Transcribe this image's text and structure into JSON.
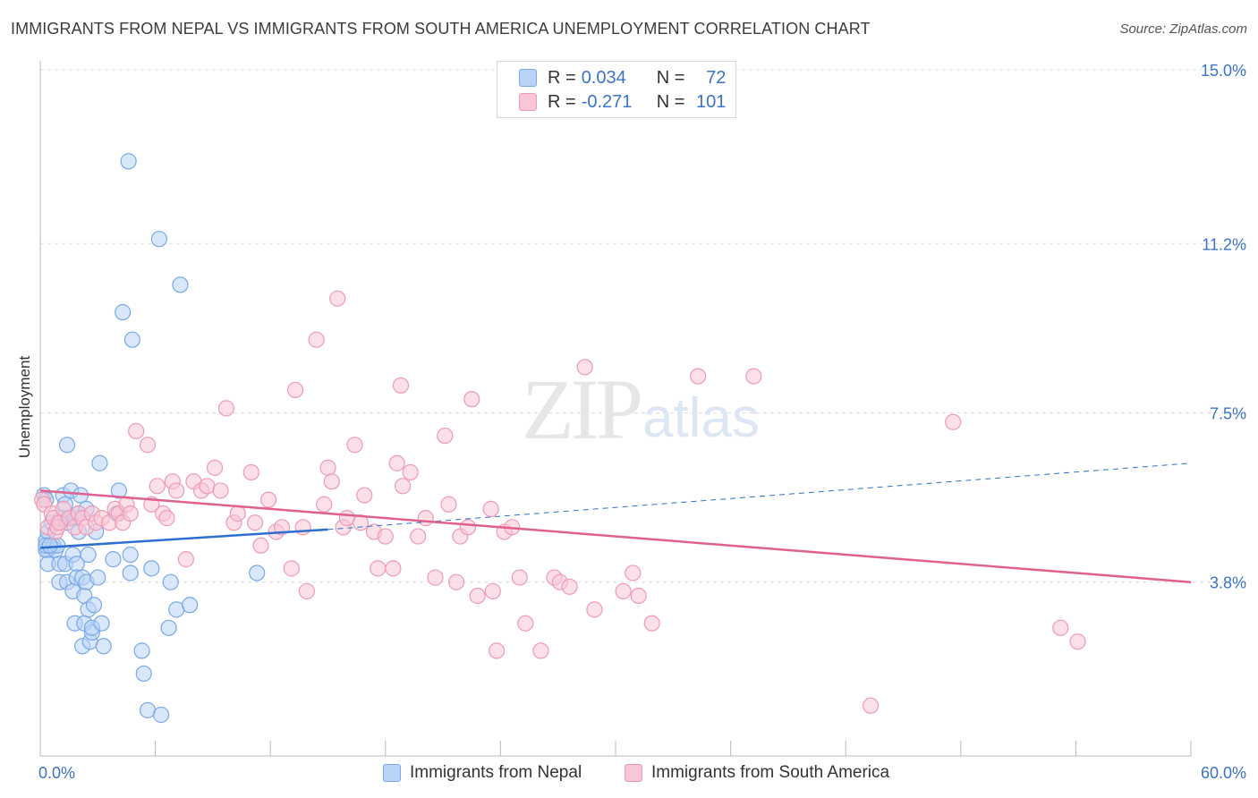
{
  "header": {
    "title": "IMMIGRANTS FROM NEPAL VS IMMIGRANTS FROM SOUTH AMERICA UNEMPLOYMENT CORRELATION CHART",
    "source": "Source: ZipAtlas.com"
  },
  "watermark": {
    "zip": "ZIP",
    "atlas": "atlas"
  },
  "legend": {
    "r_label": "R =",
    "n_label": "N =",
    "items": [
      {
        "name": "Immigrants from Nepal",
        "r": "0.034",
        "n": "72",
        "fill": "#b8d3f5",
        "stroke": "#7aa8e8"
      },
      {
        "name": "Immigrants from South America",
        "r": "-0.271",
        "n": "101",
        "fill": "#f9c6d6",
        "stroke": "#ee9ab5"
      }
    ]
  },
  "colors": {
    "blue_line": "#2c6fd0",
    "pink_line": "#e0608e",
    "tick_text": "#3b73c8",
    "grid": "#dcdcdc"
  },
  "chart_data": {
    "type": "scatter",
    "xlabel": "",
    "ylabel": "Unemployment",
    "xlim": [
      0,
      60
    ],
    "ylim": [
      0,
      15.0
    ],
    "x_tick_labels": [
      "0.0%",
      "60.0%"
    ],
    "y_ticks": [
      3.8,
      7.5,
      11.2,
      15.0
    ],
    "y_tick_labels": [
      "3.8%",
      "7.5%",
      "11.2%",
      "15.0%"
    ],
    "grid": true,
    "legend_position": "top-center",
    "series": [
      {
        "name": "Immigrants from Nepal",
        "trend": {
          "x": [
            0,
            15
          ],
          "y": [
            4.55,
            4.95
          ],
          "dashed_extension_to": [
            60,
            6.4
          ]
        },
        "points": [
          [
            0.2,
            5.7
          ],
          [
            0.3,
            5.6
          ],
          [
            0.3,
            4.7
          ],
          [
            0.4,
            4.5
          ],
          [
            0.3,
            4.5
          ],
          [
            0.4,
            4.9
          ],
          [
            0.4,
            4.2
          ],
          [
            0.3,
            4.6
          ],
          [
            0.6,
            5.1
          ],
          [
            0.7,
            4.6
          ],
          [
            0.8,
            4.5
          ],
          [
            0.9,
            4.6
          ],
          [
            0.9,
            5.1
          ],
          [
            1.0,
            4.2
          ],
          [
            1.0,
            3.8
          ],
          [
            1.1,
            5.2
          ],
          [
            1.2,
            5.7
          ],
          [
            1.3,
            4.2
          ],
          [
            1.3,
            5.5
          ],
          [
            1.4,
            3.8
          ],
          [
            1.4,
            5.1
          ],
          [
            1.4,
            6.8
          ],
          [
            1.5,
            5.2
          ],
          [
            1.6,
            5.8
          ],
          [
            1.6,
            5.2
          ],
          [
            1.7,
            3.6
          ],
          [
            1.7,
            4.4
          ],
          [
            1.8,
            5.2
          ],
          [
            1.8,
            2.9
          ],
          [
            1.9,
            4.2
          ],
          [
            1.9,
            3.9
          ],
          [
            2.0,
            5.3
          ],
          [
            2.0,
            4.9
          ],
          [
            2.1,
            5.7
          ],
          [
            2.2,
            2.4
          ],
          [
            2.2,
            3.9
          ],
          [
            2.3,
            2.9
          ],
          [
            2.3,
            3.5
          ],
          [
            2.4,
            3.8
          ],
          [
            2.4,
            5.4
          ],
          [
            2.5,
            4.4
          ],
          [
            2.5,
            3.2
          ],
          [
            2.6,
            2.5
          ],
          [
            2.7,
            2.7
          ],
          [
            2.7,
            2.8
          ],
          [
            2.8,
            3.3
          ],
          [
            2.9,
            4.9
          ],
          [
            3.0,
            3.9
          ],
          [
            3.1,
            6.4
          ],
          [
            3.2,
            2.9
          ],
          [
            3.3,
            2.4
          ],
          [
            3.8,
            4.3
          ],
          [
            4.0,
            5.3
          ],
          [
            4.1,
            5.8
          ],
          [
            4.3,
            9.7
          ],
          [
            4.6,
            13.0
          ],
          [
            4.7,
            4.4
          ],
          [
            4.7,
            4.0
          ],
          [
            4.8,
            9.1
          ],
          [
            5.3,
            2.3
          ],
          [
            5.4,
            1.8
          ],
          [
            5.6,
            1.0
          ],
          [
            5.8,
            4.1
          ],
          [
            6.3,
            0.9
          ],
          [
            6.2,
            11.3
          ],
          [
            6.7,
            2.8
          ],
          [
            6.8,
            3.8
          ],
          [
            7.1,
            3.2
          ],
          [
            7.3,
            10.3
          ],
          [
            7.8,
            3.3
          ],
          [
            11.3,
            4.0
          ],
          [
            0.5,
            4.6
          ]
        ]
      },
      {
        "name": "Immigrants from South America",
        "trend": {
          "x": [
            0,
            60
          ],
          "y": [
            5.8,
            3.8
          ]
        },
        "points": [
          [
            0.1,
            5.6
          ],
          [
            0.2,
            5.5
          ],
          [
            0.4,
            5.0
          ],
          [
            0.6,
            5.3
          ],
          [
            0.7,
            5.2
          ],
          [
            0.8,
            4.9
          ],
          [
            0.9,
            5.0
          ],
          [
            1.0,
            5.1
          ],
          [
            1.2,
            5.4
          ],
          [
            1.5,
            5.2
          ],
          [
            1.8,
            5.0
          ],
          [
            2.0,
            5.3
          ],
          [
            2.2,
            5.2
          ],
          [
            2.4,
            5.0
          ],
          [
            2.7,
            5.3
          ],
          [
            2.9,
            5.1
          ],
          [
            3.2,
            5.2
          ],
          [
            3.6,
            5.1
          ],
          [
            3.9,
            5.4
          ],
          [
            4.1,
            5.3
          ],
          [
            4.3,
            5.1
          ],
          [
            4.5,
            5.5
          ],
          [
            4.7,
            5.3
          ],
          [
            5.0,
            7.1
          ],
          [
            5.6,
            6.8
          ],
          [
            5.8,
            5.5
          ],
          [
            6.1,
            5.9
          ],
          [
            6.4,
            5.3
          ],
          [
            6.6,
            5.2
          ],
          [
            6.9,
            6.0
          ],
          [
            7.1,
            5.8
          ],
          [
            7.6,
            4.3
          ],
          [
            8.0,
            6.0
          ],
          [
            8.4,
            5.8
          ],
          [
            8.7,
            5.9
          ],
          [
            9.1,
            6.3
          ],
          [
            9.4,
            5.8
          ],
          [
            9.7,
            7.6
          ],
          [
            10.1,
            5.1
          ],
          [
            10.3,
            5.3
          ],
          [
            11.0,
            6.2
          ],
          [
            11.2,
            5.1
          ],
          [
            11.5,
            4.6
          ],
          [
            11.9,
            5.6
          ],
          [
            12.3,
            4.9
          ],
          [
            12.6,
            5.0
          ],
          [
            13.1,
            4.1
          ],
          [
            13.3,
            8.0
          ],
          [
            13.7,
            5.0
          ],
          [
            13.9,
            3.6
          ],
          [
            14.4,
            9.1
          ],
          [
            14.8,
            5.5
          ],
          [
            15.0,
            6.3
          ],
          [
            15.2,
            6.0
          ],
          [
            15.5,
            10.0
          ],
          [
            15.8,
            5.0
          ],
          [
            16.0,
            5.2
          ],
          [
            16.4,
            6.8
          ],
          [
            16.7,
            5.1
          ],
          [
            16.9,
            5.7
          ],
          [
            17.4,
            4.9
          ],
          [
            17.6,
            4.1
          ],
          [
            18.0,
            4.8
          ],
          [
            18.4,
            4.1
          ],
          [
            18.6,
            6.4
          ],
          [
            18.8,
            8.1
          ],
          [
            18.9,
            5.9
          ],
          [
            19.3,
            6.2
          ],
          [
            19.7,
            4.8
          ],
          [
            20.1,
            5.2
          ],
          [
            20.6,
            3.9
          ],
          [
            21.1,
            7.0
          ],
          [
            21.3,
            5.5
          ],
          [
            21.7,
            3.8
          ],
          [
            21.9,
            4.8
          ],
          [
            22.3,
            5.0
          ],
          [
            22.5,
            7.8
          ],
          [
            22.8,
            3.5
          ],
          [
            23.5,
            5.4
          ],
          [
            23.6,
            3.6
          ],
          [
            23.8,
            2.3
          ],
          [
            24.2,
            4.9
          ],
          [
            24.6,
            5.0
          ],
          [
            25.0,
            3.9
          ],
          [
            25.3,
            2.9
          ],
          [
            26.1,
            2.3
          ],
          [
            26.8,
            3.9
          ],
          [
            27.1,
            3.8
          ],
          [
            27.6,
            3.7
          ],
          [
            28.4,
            8.5
          ],
          [
            28.9,
            3.2
          ],
          [
            30.4,
            3.6
          ],
          [
            30.9,
            4.0
          ],
          [
            31.2,
            3.5
          ],
          [
            31.9,
            2.9
          ],
          [
            34.3,
            8.3
          ],
          [
            37.2,
            8.3
          ],
          [
            47.6,
            7.3
          ],
          [
            53.2,
            2.8
          ],
          [
            54.1,
            2.5
          ],
          [
            43.3,
            1.1
          ]
        ]
      }
    ]
  }
}
